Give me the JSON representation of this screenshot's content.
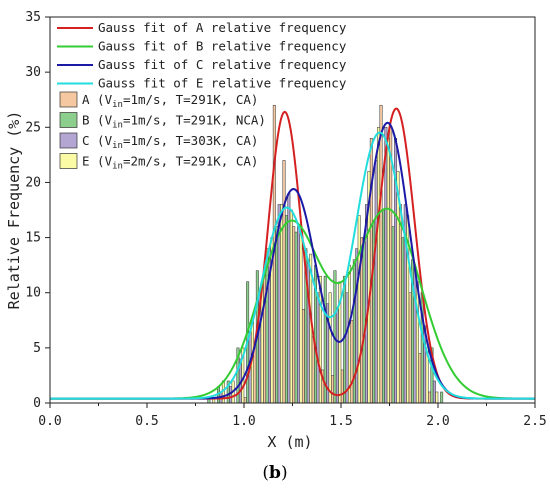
{
  "panel": {
    "open": "(",
    "letter": "b",
    "close": ")"
  },
  "chart_data": {
    "type": "bar",
    "xlabel": "X (m)",
    "ylabel": "Relative Frequency (%)",
    "xlim": [
      0.0,
      2.5
    ],
    "ylim": [
      0,
      35
    ],
    "x_ticks": [
      "0.0",
      "0.5",
      "1.0",
      "1.5",
      "2.0",
      "2.5"
    ],
    "y_ticks": [
      "0",
      "5",
      "10",
      "15",
      "20",
      "25",
      "30",
      "35"
    ],
    "grid": false,
    "legend_position": "top-left",
    "bin_centers": [
      0.775,
      0.825,
      0.875,
      0.925,
      0.975,
      1.025,
      1.075,
      1.125,
      1.175,
      1.225,
      1.275,
      1.325,
      1.375,
      1.425,
      1.475,
      1.525,
      1.575,
      1.625,
      1.675,
      1.725,
      1.775,
      1.825,
      1.875,
      1.925,
      1.975,
      2.025
    ],
    "histograms": [
      {
        "name": "A",
        "label_pre": "A (V",
        "label_sub": "in",
        "label_post": "=1m/s, T=291K, CA)",
        "color": "#f5c8a2",
        "values": [
          0,
          0,
          0,
          0,
          0,
          0.5,
          5.0,
          12.0,
          27.0,
          22.0,
          16.0,
          8.5,
          6.0,
          3.0,
          2.5,
          3.0,
          7.5,
          15.0,
          24.0,
          27.0,
          25.0,
          18.0,
          10.0,
          4.5,
          1.0,
          0
        ]
      },
      {
        "name": "B",
        "label_pre": "B (V",
        "label_sub": "in",
        "label_post": "=1m/s, T=291K, NCA)",
        "color": "#8ccf8c",
        "values": [
          0,
          0.5,
          1.5,
          2.0,
          5.0,
          11.0,
          12.0,
          14.0,
          16.0,
          17.0,
          15.5,
          14.0,
          12.5,
          11.5,
          12.0,
          11.5,
          13.0,
          15.0,
          16.5,
          17.5,
          16.0,
          15.0,
          13.0,
          10.0,
          5.0,
          1.0
        ]
      },
      {
        "name": "C",
        "label_pre": "C (V",
        "label_sub": "in",
        "label_post": "=1m/s, T=303K, CA)",
        "color": "#b4a6d2",
        "values": [
          0,
          0,
          1.0,
          1.5,
          4.0,
          6.5,
          10.0,
          14.0,
          18.0,
          19.0,
          16.0,
          13.0,
          10.0,
          9.0,
          8.5,
          10.0,
          14.0,
          18.0,
          22.0,
          25.0,
          24.0,
          18.0,
          12.0,
          7.0,
          2.0,
          0
        ]
      },
      {
        "name": "E",
        "label_pre": "E (V",
        "label_sub": "in",
        "label_post": "=2m/s, T=291K, CA)",
        "color": "#fbfba6",
        "values": [
          0,
          0.5,
          2.0,
          2.0,
          5.0,
          7.5,
          11.0,
          15.0,
          18.0,
          17.5,
          15.5,
          13.5,
          11.5,
          10.0,
          11.0,
          12.5,
          17.0,
          21.0,
          25.0,
          24.0,
          21.0,
          17.0,
          11.0,
          5.0,
          1.0,
          0
        ]
      }
    ],
    "fits": [
      {
        "name": "Gauss fit of A relative frequency",
        "color": "#d42020",
        "baseline": 0.4,
        "peaks": [
          {
            "amplitude": 26.0,
            "center": 1.21,
            "sigma": 0.085
          },
          {
            "amplitude": 26.3,
            "center": 1.785,
            "sigma": 0.095
          }
        ]
      },
      {
        "name": "Gauss fit of B relative frequency",
        "color": "#33cc33",
        "baseline": 0.4,
        "peaks": [
          {
            "amplitude": 15.9,
            "center": 1.24,
            "sigma": 0.16
          },
          {
            "amplitude": 17.1,
            "center": 1.74,
            "sigma": 0.17
          }
        ]
      },
      {
        "name": "Gauss fit of C relative frequency",
        "color": "#1a1aa6",
        "baseline": 0.4,
        "peaks": [
          {
            "amplitude": 19.0,
            "center": 1.255,
            "sigma": 0.12
          },
          {
            "amplitude": 25.0,
            "center": 1.74,
            "sigma": 0.115
          }
        ]
      },
      {
        "name": "Gauss fit of E relative frequency",
        "color": "#22dddd",
        "baseline": 0.4,
        "peaks": [
          {
            "amplitude": 17.3,
            "center": 1.22,
            "sigma": 0.13
          },
          {
            "amplitude": 24.1,
            "center": 1.7,
            "sigma": 0.13
          }
        ]
      }
    ]
  }
}
